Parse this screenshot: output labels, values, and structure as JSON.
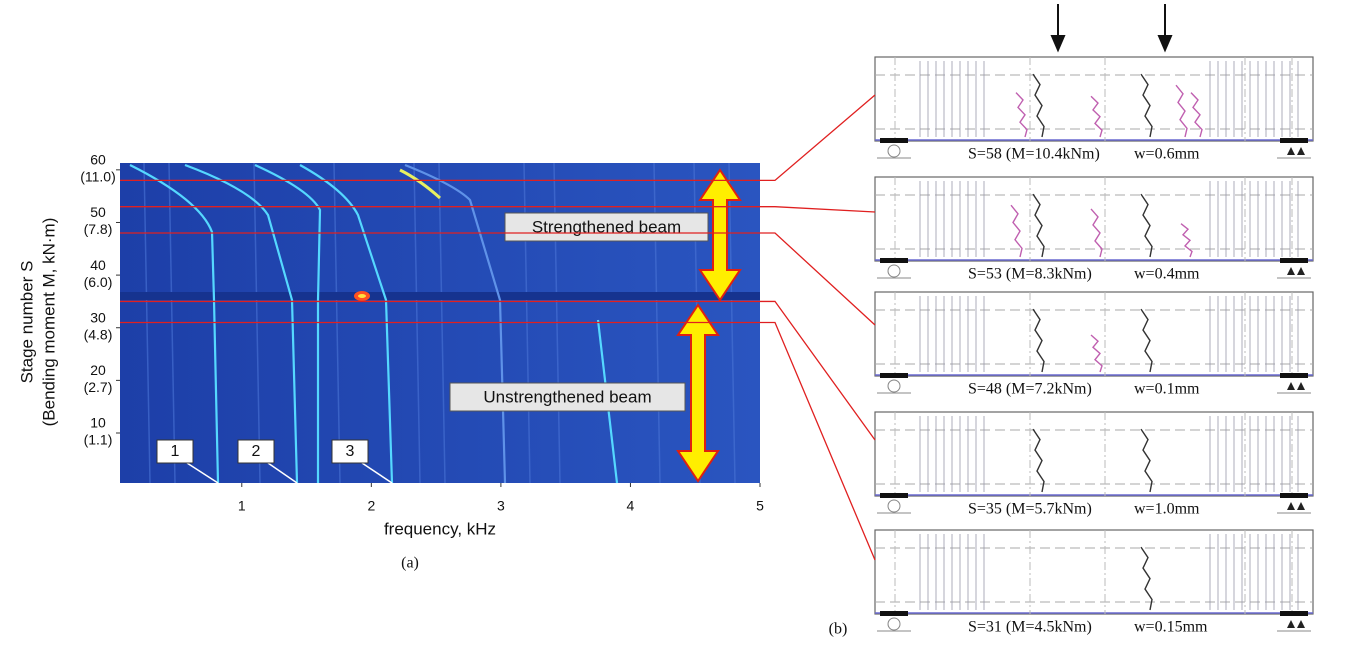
{
  "figure_a": {
    "ylabel_line1": "Stage number S",
    "ylabel_line2": "(Bending moment M, kN·m)",
    "xlabel": "frequency, kHz",
    "xlim": [
      0.06,
      5
    ],
    "xticks": [
      1,
      2,
      3,
      4,
      5
    ],
    "ylim": [
      0.5,
      61.3
    ],
    "yticks": [
      10,
      20,
      30,
      40,
      50,
      60
    ],
    "ytick_moments": [
      "(1.1)",
      "(2.7)",
      "(4.8)",
      "(6.0)",
      "(7.8)",
      "(11.0)"
    ],
    "mode_labels": [
      "1",
      "2",
      "3"
    ],
    "regions": [
      "Strengthened beam",
      "Unstrengthened beam"
    ],
    "caption": "(a)"
  },
  "figure_b": {
    "caption": "(b)",
    "beams": [
      {
        "stage": 58,
        "label": "S=58 (M=10.4kNm)",
        "crack_width": "w=0.6mm"
      },
      {
        "stage": 53,
        "label": "S=53 (M=8.3kNm)",
        "crack_width": "w=0.4mm"
      },
      {
        "stage": 48,
        "label": "S=48 (M=7.2kNm)",
        "crack_width": "w=0.1mm"
      },
      {
        "stage": 35,
        "label": "S=35 (M=5.7kNm)",
        "crack_width": "w=1.0mm"
      },
      {
        "stage": 31,
        "label": "S=31 (M=4.5kNm)",
        "crack_width": "w=0.15mm"
      }
    ]
  }
}
